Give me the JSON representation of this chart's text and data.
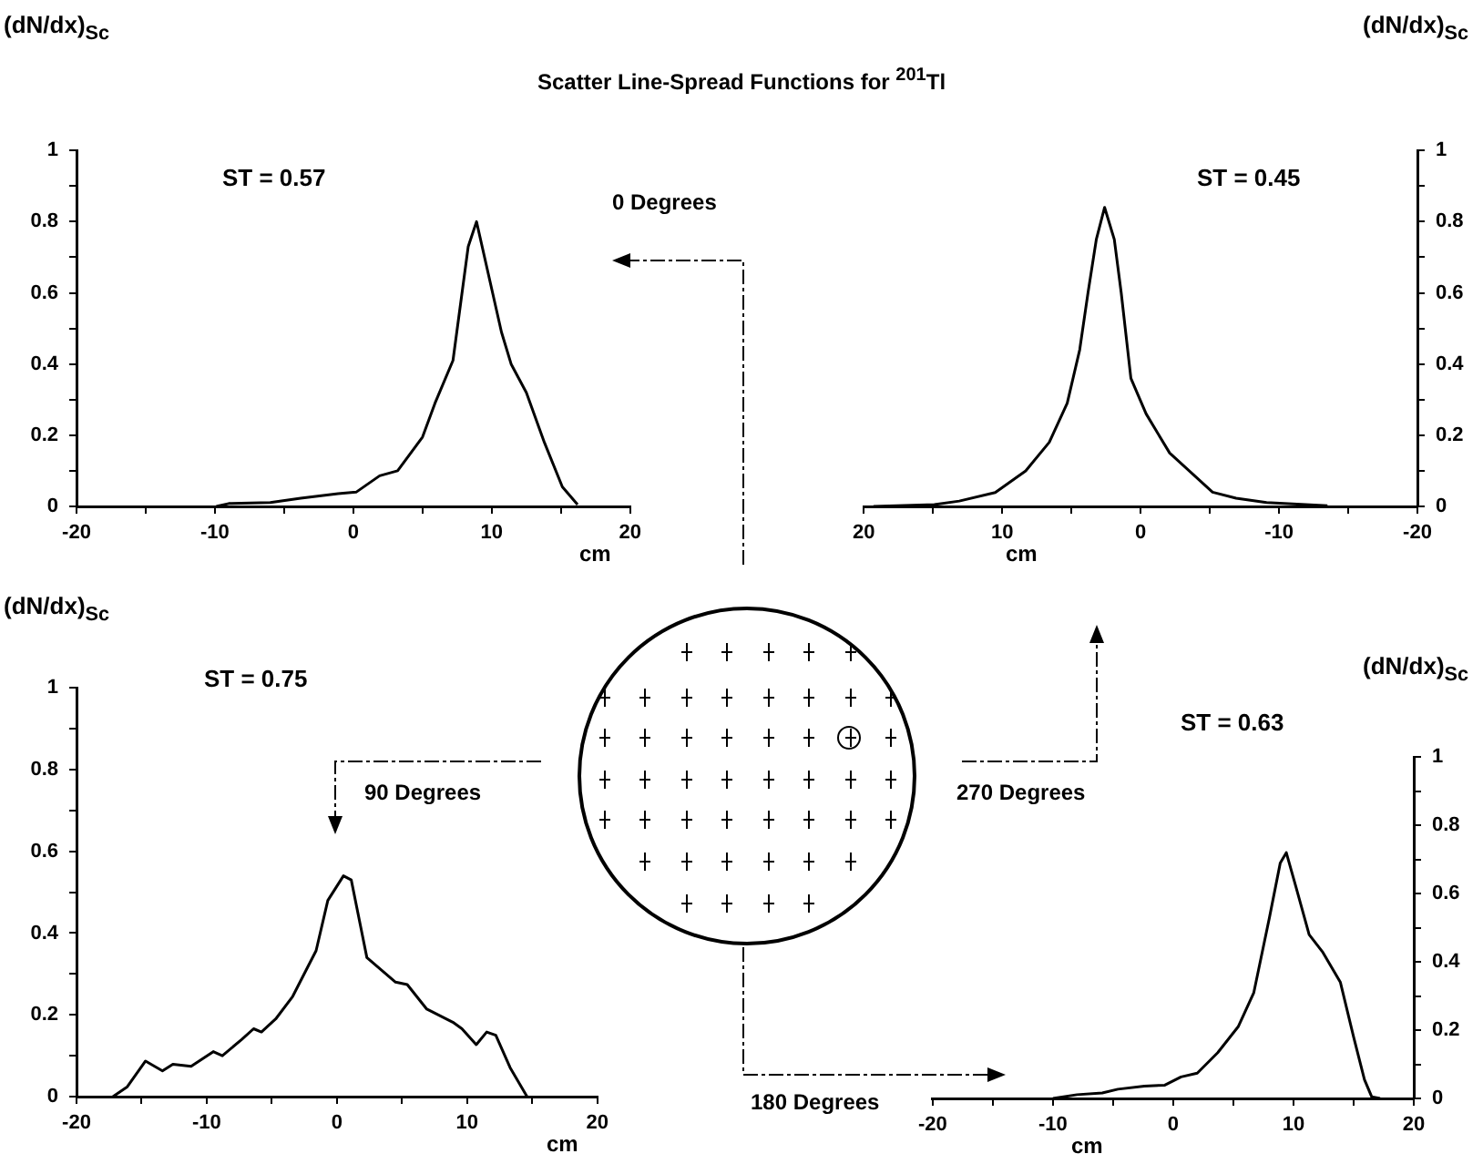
{
  "chart_data": [
    {
      "type": "line",
      "title": "Scatter Line-Spread Functions for $^{201}$Tl",
      "xlabel": "cm",
      "ylabel": "(dN/dx)$_{Sc}$",
      "annotations": [
        "ST = 0.57",
        "0 Degrees"
      ],
      "xlim": [
        -20,
        20
      ],
      "ylim": [
        0,
        1
      ],
      "xticks": [
        -20,
        {
          "value": -15,
          "label": null
        },
        -10,
        {
          "value": -5,
          "label": null
        },
        0,
        {
          "value": 5,
          "label": null
        },
        10,
        {
          "value": 15,
          "label": null
        },
        20
      ],
      "yticks": [
        0,
        {
          "value": 0.1,
          "label": null
        },
        0.2,
        {
          "value": 0.3,
          "label": null
        },
        0.4,
        {
          "value": 0.5,
          "label": null
        },
        0.6,
        {
          "value": 0.7,
          "label": null
        },
        0.8,
        {
          "value": 0.9,
          "label": null
        },
        1
      ],
      "grid": false,
      "legend": false,
      "marker": "none",
      "line_style": "solid",
      "series": [
        {
          "color": "#000000",
          "x": [
            -9.9,
            -9,
            -6,
            -3.8,
            -1.1,
            0.2,
            1.9,
            3.2,
            5,
            5.9,
            7.2,
            8.3,
            8.9,
            10.7,
            11.4,
            12.5,
            13.8,
            15.1,
            16.2
          ],
          "values": [
            0,
            0.008,
            0.011,
            0.023,
            0.036,
            0.04,
            0.086,
            0.1,
            0.195,
            0.29,
            0.41,
            0.73,
            0.8,
            0.49,
            0.4,
            0.32,
            0.18,
            0.055,
            0.005
          ]
        }
      ]
    },
    {
      "type": "line",
      "xlabel": "cm",
      "ylabel": "(dN/dx)$_{Sc}$",
      "annotations": [
        "ST = 0.45",
        "270 Degrees"
      ],
      "xlim": [
        20,
        -20
      ],
      "ylim": [
        0,
        1
      ],
      "xticks": [
        20,
        {
          "value": 15,
          "label": null
        },
        10,
        {
          "value": 5,
          "label": null
        },
        0,
        {
          "value": -5,
          "label": null
        },
        -10,
        {
          "value": -15,
          "label": null
        },
        -20
      ],
      "yticks": [
        0,
        {
          "value": 0.1,
          "label": null
        },
        0.2,
        {
          "value": 0.3,
          "label": null
        },
        0.4,
        {
          "value": 0.5,
          "label": null
        },
        0.6,
        {
          "value": 0.7,
          "label": null
        },
        0.8,
        {
          "value": 0.9,
          "label": null
        },
        1
      ],
      "grid": false,
      "legend": false,
      "marker": "none",
      "line_style": "solid",
      "series": [
        {
          "color": "#000000",
          "x": [
            19.3,
            14.9,
            13.1,
            10.5,
            8.3,
            6.6,
            5.3,
            4.4,
            3.8,
            3.2,
            2.6,
            1.9,
            1.4,
            0.7,
            -0.4,
            -2.1,
            -5.2,
            -6.9,
            -9.1,
            -13.5
          ],
          "values": [
            0,
            0.005,
            0.015,
            0.039,
            0.1,
            0.18,
            0.29,
            0.44,
            0.6,
            0.75,
            0.84,
            0.75,
            0.6,
            0.36,
            0.26,
            0.15,
            0.04,
            0.023,
            0.011,
            0.002
          ]
        }
      ]
    },
    {
      "type": "line",
      "xlabel": "cm",
      "ylabel": "(dN/dx)$_{Sc}$",
      "annotations": [
        "ST = 0.75",
        "90 Degrees"
      ],
      "xlim": [
        -20,
        20
      ],
      "ylim": [
        0,
        1
      ],
      "xticks": [
        -20,
        {
          "value": -15,
          "label": null
        },
        -10,
        {
          "value": -5,
          "label": null
        },
        0,
        {
          "value": 5,
          "label": null
        },
        10,
        {
          "value": 15,
          "label": null
        },
        20
      ],
      "yticks": [
        0,
        {
          "value": 0.1,
          "label": null
        },
        0.2,
        {
          "value": 0.3,
          "label": null
        },
        0.4,
        {
          "value": 0.5,
          "label": null
        },
        0.6,
        {
          "value": 0.7,
          "label": null
        },
        0.8,
        {
          "value": 0.9,
          "label": null
        },
        1
      ],
      "grid": false,
      "legend": false,
      "marker": "none",
      "line_style": "solid",
      "series": [
        {
          "color": "#000000",
          "x": [
            -17.2,
            -16.1,
            -14.7,
            -13.4,
            -12.6,
            -11.2,
            -9.5,
            -8.8,
            -7.3,
            -6.4,
            -5.8,
            -4.7,
            -3.4,
            -1.6,
            -0.7,
            0.5,
            1.1,
            2.3,
            4.5,
            5.4,
            6.9,
            8.9,
            9.6,
            10.7,
            11.5,
            12.2,
            13.3,
            14.6
          ],
          "values": [
            0,
            0.024,
            0.087,
            0.063,
            0.079,
            0.074,
            0.11,
            0.1,
            0.14,
            0.166,
            0.158,
            0.19,
            0.245,
            0.357,
            0.48,
            0.54,
            0.53,
            0.34,
            0.28,
            0.274,
            0.214,
            0.182,
            0.166,
            0.127,
            0.158,
            0.15,
            0.071,
            0
          ]
        }
      ]
    },
    {
      "type": "line",
      "xlabel": "cm",
      "ylabel": "(dN/dx)$_{Sc}$",
      "annotations": [
        "ST = 0.63",
        "180 Degrees"
      ],
      "xlim": [
        -20,
        20
      ],
      "ylim": [
        0,
        1
      ],
      "xticks": [
        -20,
        {
          "value": -15,
          "label": null
        },
        -10,
        {
          "value": -5,
          "label": null
        },
        0,
        {
          "value": 5,
          "label": null
        },
        10,
        {
          "value": 15,
          "label": null
        },
        20
      ],
      "yticks": [
        0,
        {
          "value": 0.1,
          "label": null
        },
        0.2,
        {
          "value": 0.3,
          "label": null
        },
        0.4,
        {
          "value": 0.5,
          "label": null
        },
        0.6,
        {
          "value": 0.7,
          "label": null
        },
        0.8,
        {
          "value": 0.9,
          "label": null
        },
        1
      ],
      "grid": false,
      "legend": false,
      "marker": "none",
      "line_style": "solid",
      "series": [
        {
          "color": "#000000",
          "x": [
            -10,
            -8,
            -5.9,
            -4.6,
            -2.4,
            -0.7,
            0.65,
            2,
            3.7,
            5.4,
            6.7,
            8,
            8.9,
            9.4,
            10.2,
            11.3,
            12.4,
            13.9,
            15,
            15.9,
            16.5,
            17.2
          ],
          "values": [
            0,
            0.011,
            0.016,
            0.027,
            0.036,
            0.039,
            0.063,
            0.074,
            0.134,
            0.21,
            0.31,
            0.53,
            0.69,
            0.72,
            0.62,
            0.48,
            0.43,
            0.34,
            0.18,
            0.055,
            0.005,
            0
          ]
        }
      ]
    }
  ]
}
